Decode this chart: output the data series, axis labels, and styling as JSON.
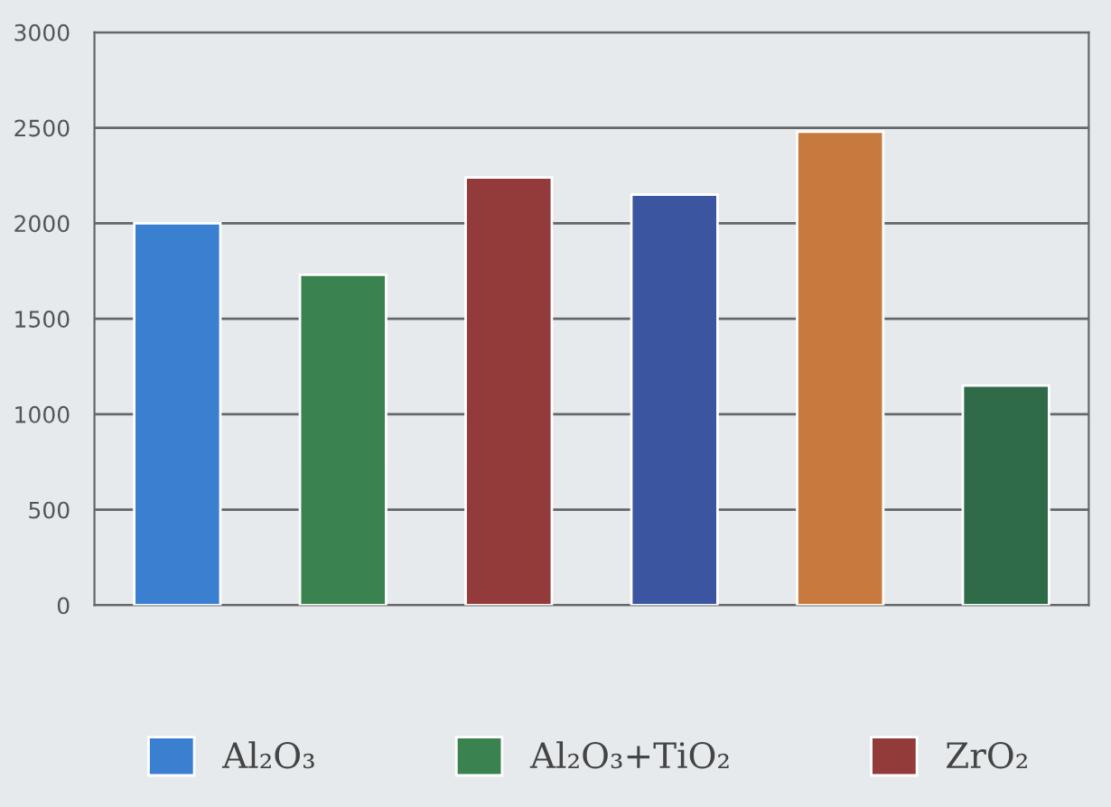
{
  "chart_data": {
    "type": "bar",
    "categories": [
      null,
      null,
      null,
      null,
      null,
      null
    ],
    "series": [
      {
        "name": "Al₂O₃",
        "color": "#3a7fd0",
        "values": [
          2000,
          null,
          null,
          null,
          null,
          null
        ]
      },
      {
        "name": "Al₂O₃+TiO₂",
        "color": "#3a8250",
        "values": [
          null,
          1730,
          null,
          null,
          null,
          null
        ]
      },
      {
        "name": "ZrO₂",
        "color": "#933a3a",
        "values": [
          null,
          null,
          2240,
          null,
          null,
          null
        ]
      },
      {
        "color": "#3c55a0",
        "values": [
          null,
          null,
          null,
          2150,
          null,
          null
        ]
      },
      {
        "color": "#c87a3e",
        "values": [
          null,
          null,
          null,
          null,
          2480,
          null
        ]
      },
      {
        "color": "#2f6b48",
        "values": [
          null,
          null,
          null,
          null,
          null,
          1150
        ]
      }
    ],
    "ylim": [
      0,
      3000
    ],
    "yticks": [
      0,
      500,
      1000,
      1500,
      2000,
      2500,
      3000
    ],
    "grid": "y",
    "legend": "bottom"
  }
}
